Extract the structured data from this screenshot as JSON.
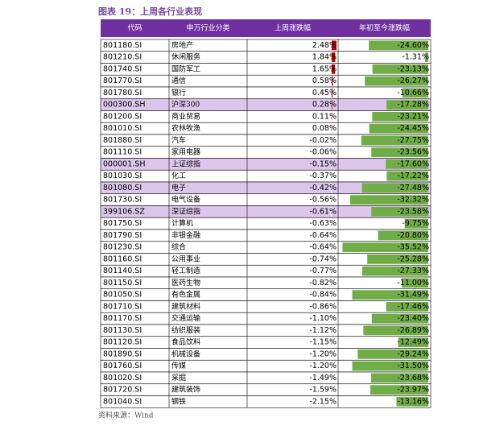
{
  "header": {
    "title": "图表 19：上周各行业表现"
  },
  "table": {
    "columns": [
      "代码",
      "申万行业分类",
      "上周涨跌幅",
      "年初至今涨跌幅"
    ],
    "rows": [
      {
        "code": "801180.SI",
        "name": "房地产",
        "week": 2.48,
        "week_label": "2.48%",
        "ytd": -24.6,
        "ytd_label": "-24.60%"
      },
      {
        "code": "801210.SI",
        "name": "休闲服务",
        "week": 1.84,
        "week_label": "1.84%",
        "ytd": -1.31,
        "ytd_label": "-1.31%"
      },
      {
        "code": "801740.SI",
        "name": "国防军工",
        "week": 1.65,
        "week_label": "1.65%",
        "ytd": -23.13,
        "ytd_label": "-23.13%"
      },
      {
        "code": "801770.SI",
        "name": "通信",
        "week": 0.58,
        "week_label": "0.58%",
        "ytd": -26.27,
        "ytd_label": "-26.27%"
      },
      {
        "code": "801780.SI",
        "name": "银行",
        "week": 0.45,
        "week_label": "0.45%",
        "ytd": -10.66,
        "ytd_label": "-10.66%"
      },
      {
        "code": "000300.SH",
        "name": "沪深300",
        "week": 0.28,
        "week_label": "0.28%",
        "ytd": -17.28,
        "ytd_label": "-17.28%",
        "highlight": true
      },
      {
        "code": "801200.SI",
        "name": "商业贸易",
        "week": 0.11,
        "week_label": "0.11%",
        "ytd": -23.21,
        "ytd_label": "-23.21%"
      },
      {
        "code": "801010.SI",
        "name": "农林牧渔",
        "week": 0.08,
        "week_label": "0.08%",
        "ytd": -24.45,
        "ytd_label": "-24.45%"
      },
      {
        "code": "801880.SI",
        "name": "汽车",
        "week": -0.02,
        "week_label": "-0.02%",
        "ytd": -27.75,
        "ytd_label": "-27.75%"
      },
      {
        "code": "801110.SI",
        "name": "家用电器",
        "week": -0.06,
        "week_label": "-0.06%",
        "ytd": -23.56,
        "ytd_label": "-23.56%"
      },
      {
        "code": "000001.SH",
        "name": "上证综指",
        "week": -0.15,
        "week_label": "-0.15%",
        "ytd": -17.6,
        "ytd_label": "-17.60%",
        "highlight": true
      },
      {
        "code": "801030.SI",
        "name": "化工",
        "week": -0.37,
        "week_label": "-0.37%",
        "ytd": -17.22,
        "ytd_label": "-17.22%"
      },
      {
        "code": "801080.SI",
        "name": "电子",
        "week": -0.42,
        "week_label": "-0.42%",
        "ytd": -27.48,
        "ytd_label": "-27.48%",
        "highlight": true
      },
      {
        "code": "801730.SI",
        "name": "电气设备",
        "week": -0.56,
        "week_label": "-0.56%",
        "ytd": -32.32,
        "ytd_label": "-32.32%"
      },
      {
        "code": "399106.SZ",
        "name": "深证综指",
        "week": -0.61,
        "week_label": "-0.61%",
        "ytd": -23.58,
        "ytd_label": "-23.58%",
        "highlight": true
      },
      {
        "code": "801750.SI",
        "name": "计算机",
        "week": -0.63,
        "week_label": "-0.63%",
        "ytd": -9.75,
        "ytd_label": "-9.75%"
      },
      {
        "code": "801790.SI",
        "name": "非银金融",
        "week": -0.64,
        "week_label": "-0.64%",
        "ytd": -20.8,
        "ytd_label": "-20.80%"
      },
      {
        "code": "801230.SI",
        "name": "综合",
        "week": -0.64,
        "week_label": "-0.64%",
        "ytd": -35.52,
        "ytd_label": "-35.52%"
      },
      {
        "code": "801160.SI",
        "name": "公用事业",
        "week": -0.74,
        "week_label": "-0.74%",
        "ytd": -25.28,
        "ytd_label": "-25.28%"
      },
      {
        "code": "801140.SI",
        "name": "轻工制造",
        "week": -0.77,
        "week_label": "-0.77%",
        "ytd": -27.33,
        "ytd_label": "-27.33%"
      },
      {
        "code": "801150.SI",
        "name": "医药生物",
        "week": -0.82,
        "week_label": "-0.82%",
        "ytd": -11.0,
        "ytd_label": "-11.00%"
      },
      {
        "code": "801050.SI",
        "name": "有色金属",
        "week": -0.84,
        "week_label": "-0.84%",
        "ytd": -31.49,
        "ytd_label": "-31.49%"
      },
      {
        "code": "801710.SI",
        "name": "建筑材料",
        "week": -0.86,
        "week_label": "-0.86%",
        "ytd": -17.46,
        "ytd_label": "-17.46%"
      },
      {
        "code": "801170.SI",
        "name": "交通运输",
        "week": -1.1,
        "week_label": "-1.10%",
        "ytd": -23.4,
        "ytd_label": "-23.40%"
      },
      {
        "code": "801130.SI",
        "name": "纺织服装",
        "week": -1.12,
        "week_label": "-1.12%",
        "ytd": -26.89,
        "ytd_label": "-26.89%"
      },
      {
        "code": "801120.SI",
        "name": "食品饮料",
        "week": -1.15,
        "week_label": "-1.15%",
        "ytd": -12.49,
        "ytd_label": "-12.49%"
      },
      {
        "code": "801890.SI",
        "name": "机械设备",
        "week": -1.2,
        "week_label": "-1.20%",
        "ytd": -29.24,
        "ytd_label": "-29.24%"
      },
      {
        "code": "801760.SI",
        "name": "传媒",
        "week": -1.2,
        "week_label": "-1.20%",
        "ytd": -31.5,
        "ytd_label": "-31.50%"
      },
      {
        "code": "801020.SI",
        "name": "采掘",
        "week": -1.49,
        "week_label": "-1.49%",
        "ytd": -23.68,
        "ytd_label": "-23.68%"
      },
      {
        "code": "801720.SI",
        "name": "建筑装饰",
        "week": -1.59,
        "week_label": "-1.59%",
        "ytd": -23.97,
        "ytd_label": "-23.97%"
      },
      {
        "code": "801040.SI",
        "name": "钢铁",
        "week": -2.15,
        "week_label": "-2.15%",
        "ytd": -13.16,
        "ytd_label": "-13.16%"
      }
    ]
  },
  "footer": {
    "source": "资料来源：Wind"
  }
}
